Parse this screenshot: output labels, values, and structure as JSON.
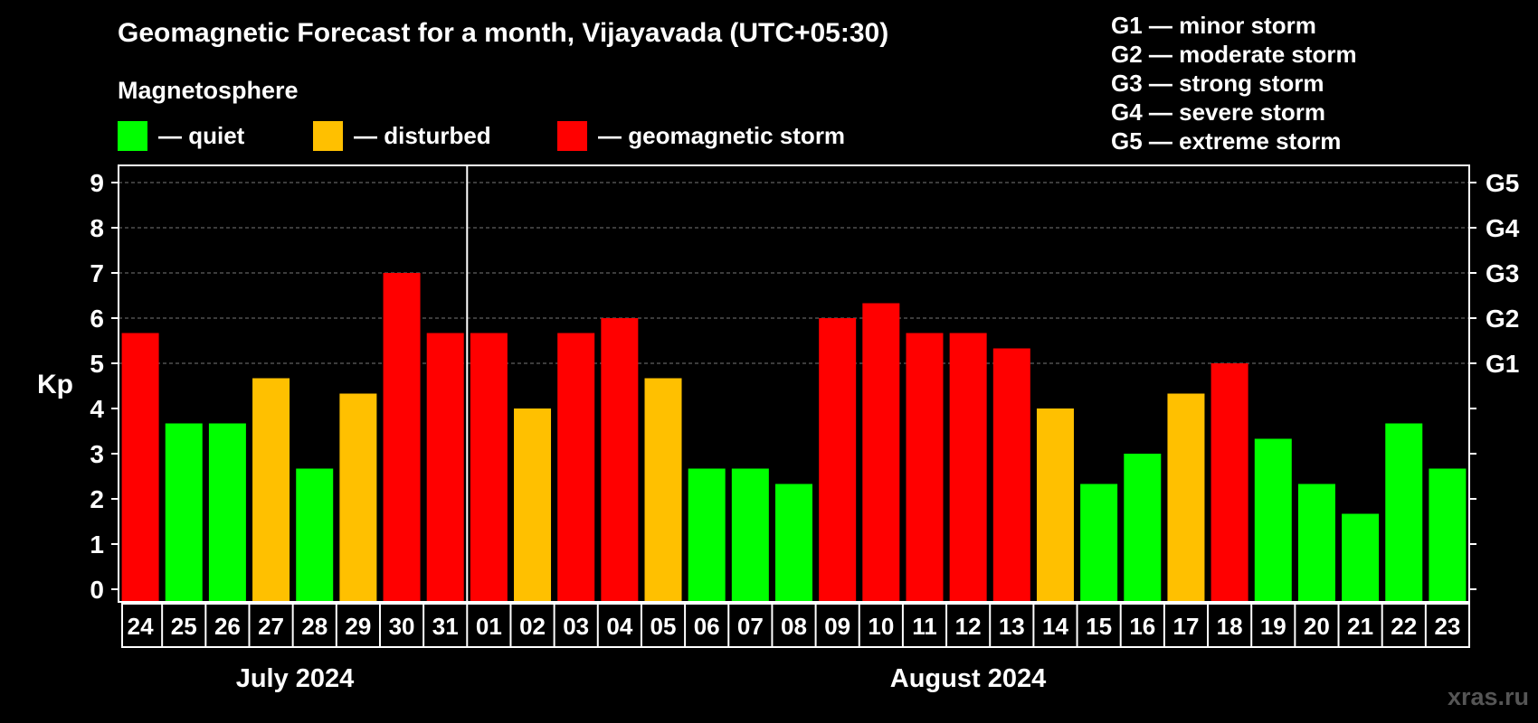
{
  "header": {
    "title": "Geomagnetic Forecast for a month, Vijayavada (UTC+05:30)",
    "subtitle": "Magnetosphere"
  },
  "legend": {
    "quiet": {
      "label": "— quiet",
      "color": "#00ff00"
    },
    "disturbed": {
      "label": "— disturbed",
      "color": "#ffc000"
    },
    "storm": {
      "label": "— geomagnetic storm",
      "color": "#ff0000"
    }
  },
  "g_legend": [
    "G1 — minor storm",
    "G2 — moderate storm",
    "G3 — strong storm",
    "G4 — severe storm",
    "G5 — extreme storm"
  ],
  "months": {
    "first": "July 2024",
    "second": "August 2024"
  },
  "watermark": "xras.ru",
  "chart_data": {
    "type": "bar",
    "ylabel": "Kp",
    "ylim": [
      0,
      9
    ],
    "yticks": [
      "0",
      "1",
      "2",
      "3",
      "4",
      "5",
      "6",
      "7",
      "8",
      "9"
    ],
    "right_ticks": [
      {
        "y": 5,
        "label": "G1"
      },
      {
        "y": 6,
        "label": "G2"
      },
      {
        "y": 7,
        "label": "G3"
      },
      {
        "y": 8,
        "label": "G4"
      },
      {
        "y": 9,
        "label": "G5"
      }
    ],
    "grid": true,
    "categories": [
      "24",
      "25",
      "26",
      "27",
      "28",
      "29",
      "30",
      "31",
      "01",
      "02",
      "03",
      "04",
      "05",
      "06",
      "07",
      "08",
      "09",
      "10",
      "11",
      "12",
      "13",
      "14",
      "15",
      "16",
      "17",
      "18",
      "19",
      "20",
      "21",
      "22",
      "23"
    ],
    "values": [
      5.67,
      3.67,
      3.67,
      4.67,
      2.67,
      4.33,
      7.0,
      5.67,
      5.67,
      4.0,
      5.67,
      6.0,
      4.67,
      2.67,
      2.67,
      2.33,
      6.0,
      6.33,
      5.67,
      5.67,
      5.33,
      4.0,
      2.33,
      3.0,
      4.33,
      5.0,
      3.33,
      2.33,
      1.67,
      3.67,
      2.67
    ],
    "levels": [
      "storm",
      "quiet",
      "quiet",
      "disturbed",
      "quiet",
      "disturbed",
      "storm",
      "storm",
      "storm",
      "disturbed",
      "storm",
      "storm",
      "disturbed",
      "quiet",
      "quiet",
      "quiet",
      "storm",
      "storm",
      "storm",
      "storm",
      "storm",
      "disturbed",
      "quiet",
      "quiet",
      "disturbed",
      "storm",
      "quiet",
      "quiet",
      "quiet",
      "quiet",
      "quiet"
    ],
    "month_split_after": "31"
  }
}
